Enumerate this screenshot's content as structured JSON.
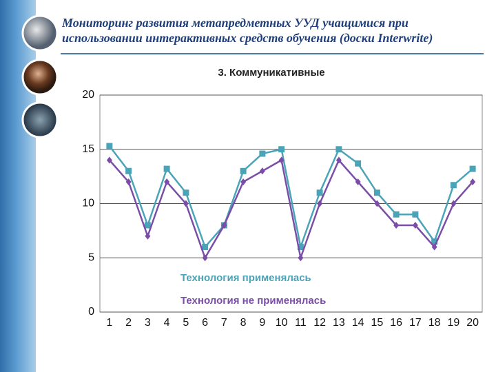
{
  "header": {
    "title": "Мониторинг развития метапредметных УУД учащимися при использовании интерактивных средств обучения (доски Interwrite)"
  },
  "chart_data": {
    "type": "line",
    "title": "3. Коммуникативные",
    "categories": [
      "1",
      "2",
      "3",
      "4",
      "5",
      "6",
      "7",
      "8",
      "9",
      "10",
      "11",
      "12",
      "13",
      "14",
      "15",
      "16",
      "17",
      "18",
      "19",
      "20"
    ],
    "series": [
      {
        "name": "Технология применялась",
        "color": "#4ba3b8",
        "marker": "square",
        "values": [
          15.3,
          13,
          8,
          13.2,
          11,
          6,
          8,
          13,
          14.6,
          15,
          6,
          11,
          15,
          13.7,
          11,
          9,
          9,
          6.5,
          11.7,
          13.2
        ]
      },
      {
        "name": "Технология не применялась",
        "color": "#7a4ea6",
        "marker": "diamond",
        "values": [
          14,
          12,
          7,
          12,
          10,
          5,
          8,
          12,
          13,
          14,
          5,
          10,
          14,
          12,
          10,
          8,
          8,
          6,
          10,
          12
        ]
      }
    ],
    "ylim": [
      0,
      20
    ],
    "yticks": [
      0,
      5,
      10,
      15,
      20
    ],
    "grid": true
  }
}
